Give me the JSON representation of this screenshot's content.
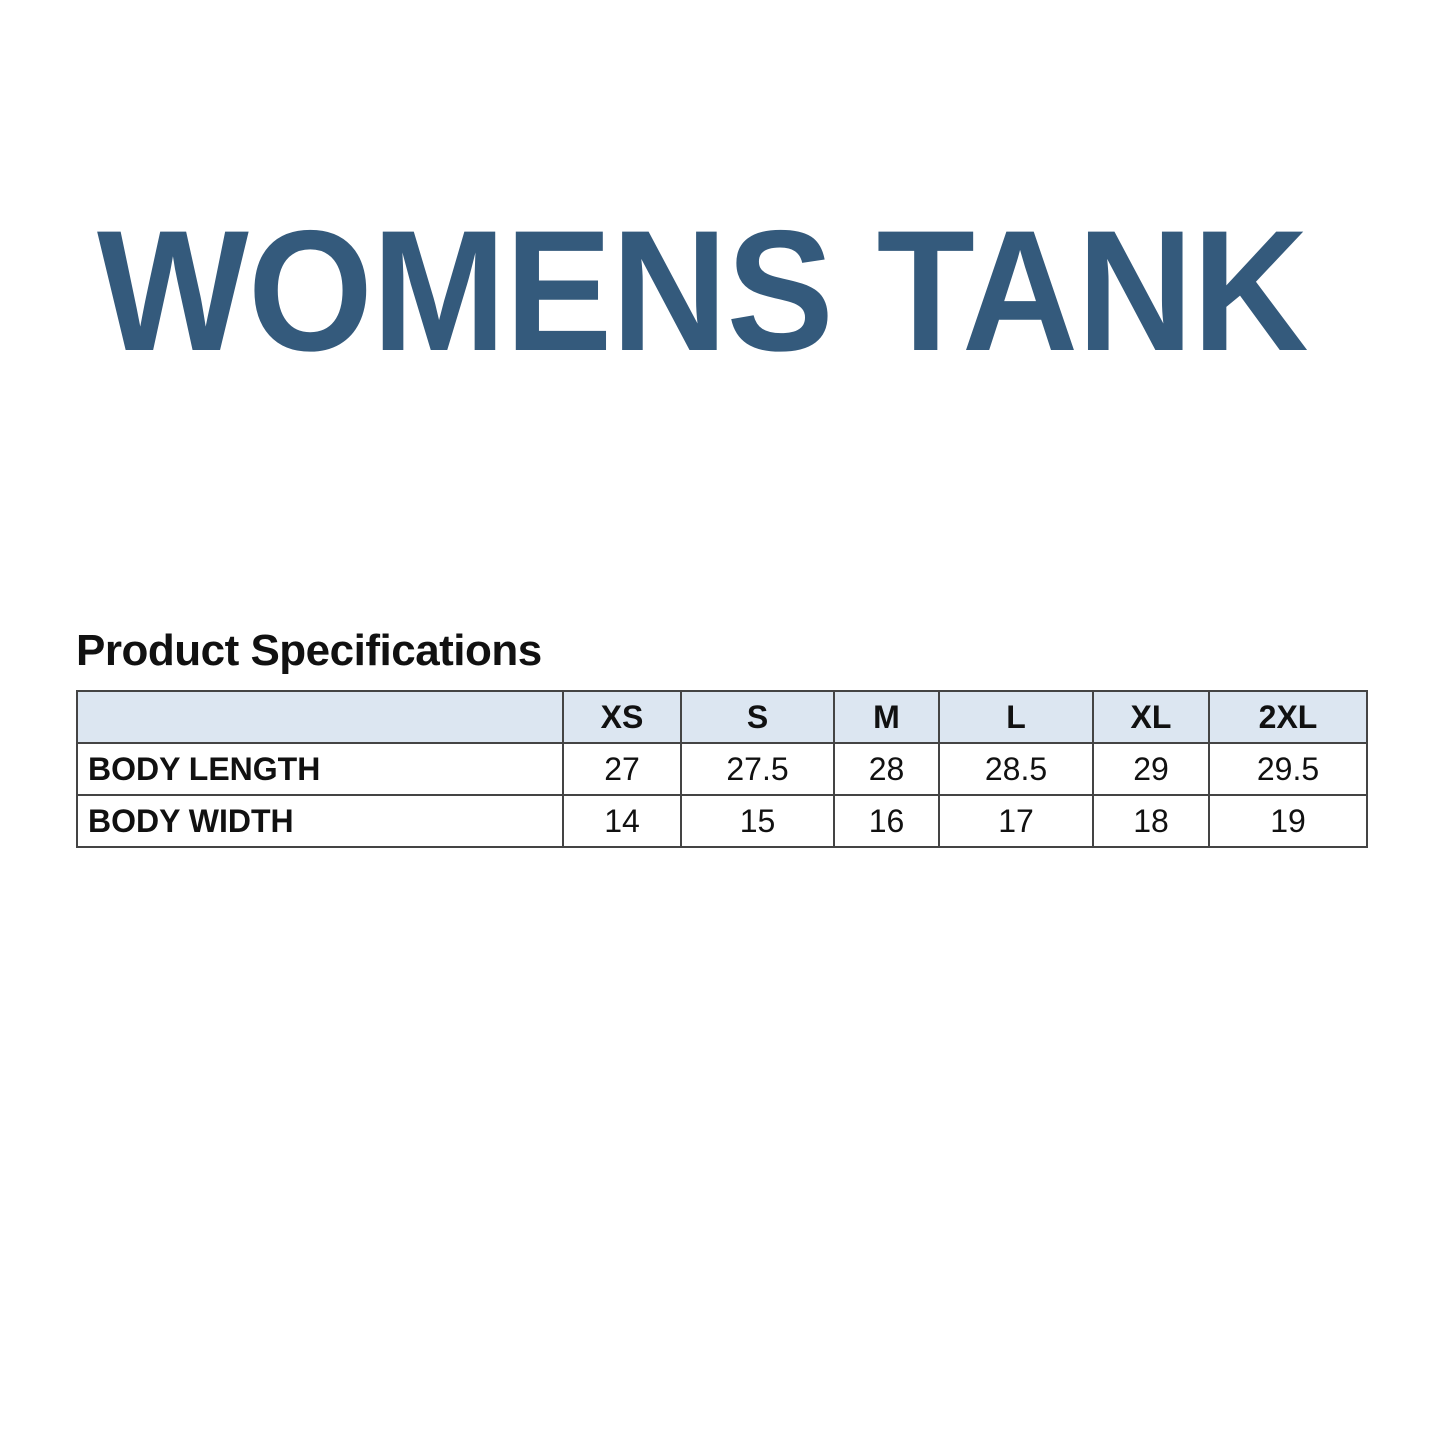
{
  "title": "WOMENS TANK",
  "subtitle": "Product Specifications",
  "colors": {
    "title": "#345a7c",
    "header_fill": "#dce6f1"
  },
  "table": {
    "header": [
      "",
      "XS",
      "S",
      "M",
      "L",
      "XL",
      "2XL"
    ],
    "rows": [
      {
        "label": "BODY LENGTH",
        "values": [
          "27",
          "27.5",
          "28",
          "28.5",
          "29",
          "29.5"
        ]
      },
      {
        "label": "BODY WIDTH",
        "values": [
          "14",
          "15",
          "16",
          "17",
          "18",
          "19"
        ]
      }
    ]
  }
}
